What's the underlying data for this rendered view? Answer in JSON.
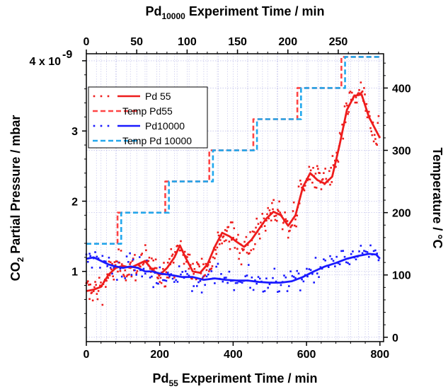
{
  "chart_data": {
    "type": "scatter",
    "bottom_axis": {
      "label_main": "Pd",
      "label_sub": "55",
      "label_rest": " Experiment Time / min",
      "range": [
        0,
        810
      ],
      "ticks": [
        0,
        200,
        400,
        600,
        800
      ],
      "tick_labels": [
        "0",
        "200",
        "400",
        "600",
        "800"
      ]
    },
    "top_axis": {
      "label_main": "Pd",
      "label_sub": "10000",
      "label_rest": " Experiment Time / min",
      "range": [
        0,
        295
      ],
      "ticks": [
        0,
        50,
        100,
        150,
        200,
        250
      ],
      "tick_labels": [
        "0",
        "50",
        "100",
        "150",
        "200",
        "250"
      ]
    },
    "left_axis": {
      "label_pre": "CO",
      "label_sub": "2",
      "label_rest": " Partial Pressure / mbar",
      "range": [
        0,
        4.1
      ],
      "ticks": [
        1,
        2,
        3,
        4
      ],
      "tick_labels": [
        "1",
        "2",
        "3",
        "4 x 10"
      ],
      "exponent": "-9"
    },
    "right_axis": {
      "label": "Temperature / °C",
      "range": [
        -7,
        455
      ],
      "ticks": [
        0,
        100,
        200,
        300,
        400
      ],
      "tick_labels": [
        "0",
        "100",
        "200",
        "300",
        "400"
      ]
    },
    "grid": true,
    "legend_position": "upper-left",
    "legend": [
      {
        "name": "Pd 55",
        "style": "dots+line",
        "color": "#ee1c1c"
      },
      {
        "name": "Temp Pd55",
        "style": "dashed",
        "color": "#ff4444"
      },
      {
        "name": "Pd10000",
        "style": "dots+line",
        "color": "#1a1aff"
      },
      {
        "name": "Temp Pd 10000",
        "style": "dashed",
        "color": "#22a8ee"
      }
    ],
    "series": [
      {
        "name": "Pd 55",
        "axis": "bottom-left",
        "kind": "smoothed-line",
        "color": "#ee1c1c",
        "x": [
          0,
          20,
          40,
          60,
          80,
          100,
          120,
          140,
          160,
          180,
          200,
          220,
          240,
          255,
          270,
          290,
          310,
          330,
          350,
          370,
          390,
          410,
          430,
          450,
          470,
          490,
          510,
          530,
          550,
          570,
          590,
          610,
          630,
          650,
          670,
          690,
          710,
          730,
          750,
          770,
          790,
          800
        ],
        "y": [
          0.72,
          0.74,
          0.78,
          0.95,
          1.05,
          1.08,
          1.05,
          1.1,
          1.15,
          1.02,
          0.95,
          1.05,
          1.2,
          1.37,
          1.2,
          1.0,
          0.98,
          1.1,
          1.35,
          1.55,
          1.5,
          1.42,
          1.35,
          1.45,
          1.6,
          1.75,
          1.85,
          1.8,
          1.65,
          1.8,
          2.2,
          2.4,
          2.3,
          2.25,
          2.35,
          2.8,
          3.3,
          3.5,
          3.52,
          3.2,
          3.0,
          2.9
        ]
      },
      {
        "name": "Temp Pd55",
        "axis": "bottom-right",
        "kind": "step",
        "color": "#ff4444",
        "x": [
          0,
          85,
          85,
          215,
          215,
          335,
          335,
          455,
          455,
          575,
          575,
          695,
          695,
          800
        ],
        "y": [
          150,
          150,
          200,
          200,
          250,
          250,
          300,
          300,
          350,
          350,
          400,
          400,
          450,
          450
        ]
      },
      {
        "name": "Pd10000",
        "axis": "bottom-left",
        "kind": "smoothed-line",
        "color": "#1a1aff",
        "x": [
          0,
          20,
          40,
          60,
          80,
          100,
          120,
          140,
          160,
          180,
          200,
          230,
          260,
          290,
          320,
          350,
          380,
          410,
          440,
          470,
          500,
          530,
          560,
          590,
          620,
          650,
          680,
          710,
          740,
          770,
          790,
          800
        ],
        "y": [
          1.18,
          1.2,
          1.15,
          1.1,
          1.07,
          1.05,
          1.07,
          1.05,
          1.0,
          1.0,
          0.97,
          0.95,
          0.92,
          0.92,
          0.88,
          0.9,
          0.88,
          0.87,
          0.87,
          0.85,
          0.84,
          0.84,
          0.86,
          0.92,
          1.0,
          1.07,
          1.12,
          1.18,
          1.22,
          1.25,
          1.24,
          1.18
        ]
      },
      {
        "name": "Temp Pd 10000",
        "axis": "bottom-right",
        "kind": "step",
        "color": "#22a8ee",
        "x": [
          0,
          95,
          95,
          225,
          225,
          345,
          345,
          465,
          465,
          585,
          585,
          705,
          705,
          800
        ],
        "y": [
          150,
          150,
          200,
          200,
          250,
          250,
          300,
          300,
          350,
          350,
          400,
          400,
          450,
          450
        ]
      }
    ]
  }
}
